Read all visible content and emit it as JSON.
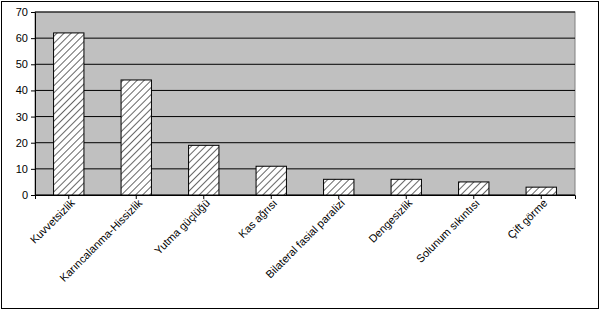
{
  "chart_data": {
    "type": "bar",
    "categories": [
      "Kuvvetsizlik",
      "Karıncalanma-Hissizlik",
      "Yutma güçlüğü",
      "Kas ağrısı",
      "Bilateral fasial paralizi",
      "Dengesizlik",
      "Solunum sıkıntısı",
      "Çift görme"
    ],
    "values": [
      62,
      44,
      19,
      11,
      6,
      6,
      5,
      3
    ],
    "color": "#000000",
    "ylim": [
      0,
      70
    ],
    "yticks": [
      0,
      10,
      20,
      30,
      40,
      50,
      60,
      70
    ],
    "grid": true
  }
}
